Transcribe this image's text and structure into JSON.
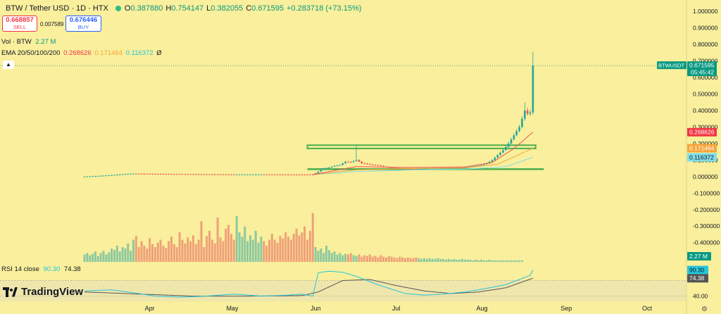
{
  "header": {
    "symbol": "BTW / Tether USD · 1D · HTX",
    "open_label": "O",
    "open": "0.387880",
    "high_label": "H",
    "high": "0.754147",
    "low_label": "L",
    "low": "0.382055",
    "close_label": "C",
    "close": "0.671595",
    "change": "+0.283718 (+73.15%)"
  },
  "trade": {
    "sell_price": "0.668857",
    "sell_label": "SELL",
    "spread": "0.007589",
    "buy_price": "0.676446",
    "buy_label": "BUY"
  },
  "volume_legend": {
    "label": "Vol · BTW",
    "value": "2.27 M"
  },
  "ema_legend": {
    "label": "EMA 20/50/100/200",
    "v20": "0.268626",
    "v50": "0.171464",
    "v100": "0.116372",
    "v200": "Ø"
  },
  "rsi_legend": {
    "label": "RSI 14 close",
    "rsi": "90.30",
    "ma": "74.38"
  },
  "logo": {
    "text": "TradingView"
  },
  "colors": {
    "background": "#f9ef9c",
    "up": "#26a69a",
    "down": "#ef5350",
    "ema20": "#ef5350",
    "ema50": "#f7a53a",
    "ema100": "#80deea",
    "zone": "#4caf50",
    "rsi": "#26c6da",
    "rsi_ma": "#555555"
  },
  "chart_data": {
    "type": "candlestick",
    "y_ticks": [
      "1.000000",
      "0.900000",
      "0.800000",
      "0.700000",
      "0.600000",
      "0.500000",
      "0.400000",
      "0.300000",
      "0.200000",
      "0.100000",
      "0.000000",
      "-0.100000",
      "-0.200000",
      "-0.300000",
      "-0.400000"
    ],
    "y_tick_values": [
      1.0,
      0.9,
      0.8,
      0.7,
      0.6,
      0.5,
      0.4,
      0.3,
      0.2,
      0.1,
      0.0,
      -0.1,
      -0.2,
      -0.3,
      -0.4
    ],
    "months": [
      "Apr",
      "May",
      "Jun",
      "Jul",
      "Aug",
      "Sep",
      "Oct"
    ],
    "month_days": [
      24,
      54,
      85,
      115,
      146,
      177,
      207
    ],
    "last_day": 165,
    "price_badges": [
      {
        "label": "BTWUSDT",
        "value": "0.671595",
        "timer": "05:45:42",
        "price": 0.671595,
        "color": "#089981"
      },
      {
        "value": "0.268626",
        "price": 0.268626,
        "color": "#f23645"
      },
      {
        "value": "0.171464",
        "price": 0.171464,
        "color": "#f7a53a"
      },
      {
        "value": "0.116372",
        "price": 0.116372,
        "color": "#80deea",
        "text_color": "#131722"
      }
    ],
    "volume_badge": {
      "value": "2.27 M",
      "color": "#089981"
    },
    "rsi_badges": [
      {
        "value": "90.30",
        "color": "#26c6da",
        "text_color": "#131722"
      },
      {
        "value": "74.38",
        "color": "#555555"
      }
    ],
    "rsi_label": "40.00",
    "candles_close": [
      [
        0,
        0.0
      ],
      [
        5,
        0.004
      ],
      [
        10,
        0.009
      ],
      [
        14,
        0.014
      ],
      [
        18,
        0.018
      ],
      [
        22,
        0.017
      ],
      [
        28,
        0.016
      ],
      [
        35,
        0.015
      ],
      [
        45,
        0.014
      ],
      [
        55,
        0.013
      ],
      [
        65,
        0.013
      ],
      [
        75,
        0.0125
      ],
      [
        84,
        0.012
      ],
      [
        86,
        0.03
      ],
      [
        88,
        0.05
      ],
      [
        90,
        0.055
      ],
      [
        92,
        0.065
      ],
      [
        94,
        0.07
      ],
      [
        96,
        0.09
      ],
      [
        98,
        0.088
      ],
      [
        100,
        0.1
      ],
      [
        102,
        0.08
      ],
      [
        104,
        0.075
      ],
      [
        106,
        0.07
      ],
      [
        108,
        0.068
      ],
      [
        110,
        0.06
      ],
      [
        112,
        0.055
      ],
      [
        115,
        0.05
      ],
      [
        118,
        0.048
      ],
      [
        122,
        0.047
      ],
      [
        126,
        0.048
      ],
      [
        130,
        0.05
      ],
      [
        134,
        0.052
      ],
      [
        138,
        0.055
      ],
      [
        142,
        0.06
      ],
      [
        146,
        0.07
      ],
      [
        148,
        0.08
      ],
      [
        150,
        0.1
      ],
      [
        152,
        0.13
      ],
      [
        154,
        0.16
      ],
      [
        156,
        0.2
      ],
      [
        158,
        0.25
      ],
      [
        160,
        0.3
      ],
      [
        161,
        0.35
      ],
      [
        162,
        0.4
      ],
      [
        163,
        0.38
      ],
      [
        164,
        0.3879
      ],
      [
        165,
        0.6716
      ]
    ],
    "candles_high": {
      "100": 0.19,
      "165": 0.7541,
      "162": 0.45
    },
    "ema20": [
      [
        84,
        0.012
      ],
      [
        100,
        0.06
      ],
      [
        120,
        0.055
      ],
      [
        140,
        0.058
      ],
      [
        150,
        0.085
      ],
      [
        158,
        0.17
      ],
      [
        165,
        0.268626
      ]
    ],
    "ema50": [
      [
        84,
        0.012
      ],
      [
        100,
        0.04
      ],
      [
        120,
        0.048
      ],
      [
        140,
        0.052
      ],
      [
        152,
        0.075
      ],
      [
        165,
        0.171464
      ]
    ],
    "ema100": [
      [
        84,
        0.012
      ],
      [
        100,
        0.03
      ],
      [
        120,
        0.04
      ],
      [
        140,
        0.045
      ],
      [
        155,
        0.06
      ],
      [
        165,
        0.116372
      ]
    ],
    "resistance_zone": {
      "top": 0.19,
      "bottom": 0.17,
      "from_day": 82,
      "to_day": 166
    },
    "support_line": {
      "value": 0.045,
      "from_day": 82,
      "to_day": 169
    },
    "last_price_line": 0.671595,
    "volume": [
      0.1,
      0.12,
      0.09,
      0.11,
      0.14,
      0.08,
      0.12,
      0.15,
      0.1,
      0.13,
      0.18,
      0.16,
      0.22,
      0.14,
      0.2,
      0.18,
      0.25,
      0.15,
      0.3,
      0.35,
      0.2,
      0.28,
      0.22,
      0.18,
      0.32,
      0.24,
      0.2,
      0.26,
      0.3,
      0.22,
      0.19,
      0.28,
      0.34,
      0.24,
      0.2,
      0.4,
      0.3,
      0.25,
      0.33,
      0.28,
      0.36,
      0.24,
      0.3,
      0.55,
      0.2,
      0.35,
      0.42,
      0.3,
      0.25,
      0.6,
      0.33,
      0.28,
      0.45,
      0.5,
      0.38,
      0.3,
      0.62,
      0.4,
      0.34,
      0.48,
      0.28,
      0.36,
      0.3,
      0.42,
      0.26,
      0.34,
      0.28,
      0.22,
      0.3,
      0.38,
      0.3,
      0.26,
      0.35,
      0.32,
      0.4,
      0.34,
      0.3,
      0.38,
      0.45,
      0.36,
      0.4,
      0.48,
      0.3,
      0.42,
      0.66,
      0.2,
      0.15,
      0.18,
      0.12,
      0.22,
      0.16,
      0.12,
      0.14,
      0.1,
      0.12,
      0.09,
      0.11,
      0.1,
      0.12,
      0.09,
      0.08,
      0.1,
      0.07,
      0.09,
      0.08,
      0.1,
      0.07,
      0.08,
      0.06,
      0.09,
      0.07,
      0.06,
      0.08,
      0.07,
      0.06,
      0.05,
      0.07,
      0.06,
      0.05,
      0.06,
      0.05,
      0.05,
      0.06,
      0.05,
      0.04,
      0.05,
      0.04,
      0.05,
      0.04,
      0.04,
      0.05,
      0.04,
      0.04,
      0.03,
      0.04,
      0.03,
      0.04,
      0.03,
      0.03,
      0.04,
      0.03,
      0.03,
      0.03,
      0.02,
      0.03,
      0.02,
      0.03,
      0.02,
      0.02,
      0.03,
      0.02,
      0.02,
      0.02,
      0.02,
      0.02,
      0.02,
      0.02,
      0.02,
      0.02,
      0.02,
      0.02,
      0.02
    ],
    "rsi": [
      [
        0,
        50
      ],
      [
        10,
        52
      ],
      [
        20,
        45
      ],
      [
        26,
        40
      ],
      [
        35,
        38
      ],
      [
        45,
        40
      ],
      [
        55,
        44
      ],
      [
        65,
        40
      ],
      [
        75,
        42
      ],
      [
        80,
        44
      ],
      [
        84,
        40
      ],
      [
        86,
        85
      ],
      [
        90,
        88
      ],
      [
        95,
        86
      ],
      [
        100,
        78
      ],
      [
        104,
        70
      ],
      [
        108,
        62
      ],
      [
        112,
        55
      ],
      [
        118,
        45
      ],
      [
        125,
        42
      ],
      [
        132,
        44
      ],
      [
        140,
        48
      ],
      [
        148,
        55
      ],
      [
        155,
        62
      ],
      [
        160,
        72
      ],
      [
        164,
        80
      ],
      [
        165,
        90.3
      ]
    ],
    "rsi_ma": [
      [
        0,
        48
      ],
      [
        20,
        44
      ],
      [
        40,
        40
      ],
      [
        60,
        40
      ],
      [
        80,
        41
      ],
      [
        86,
        48
      ],
      [
        95,
        70
      ],
      [
        105,
        72
      ],
      [
        115,
        60
      ],
      [
        125,
        50
      ],
      [
        135,
        45
      ],
      [
        145,
        48
      ],
      [
        155,
        56
      ],
      [
        165,
        74.38
      ]
    ]
  }
}
